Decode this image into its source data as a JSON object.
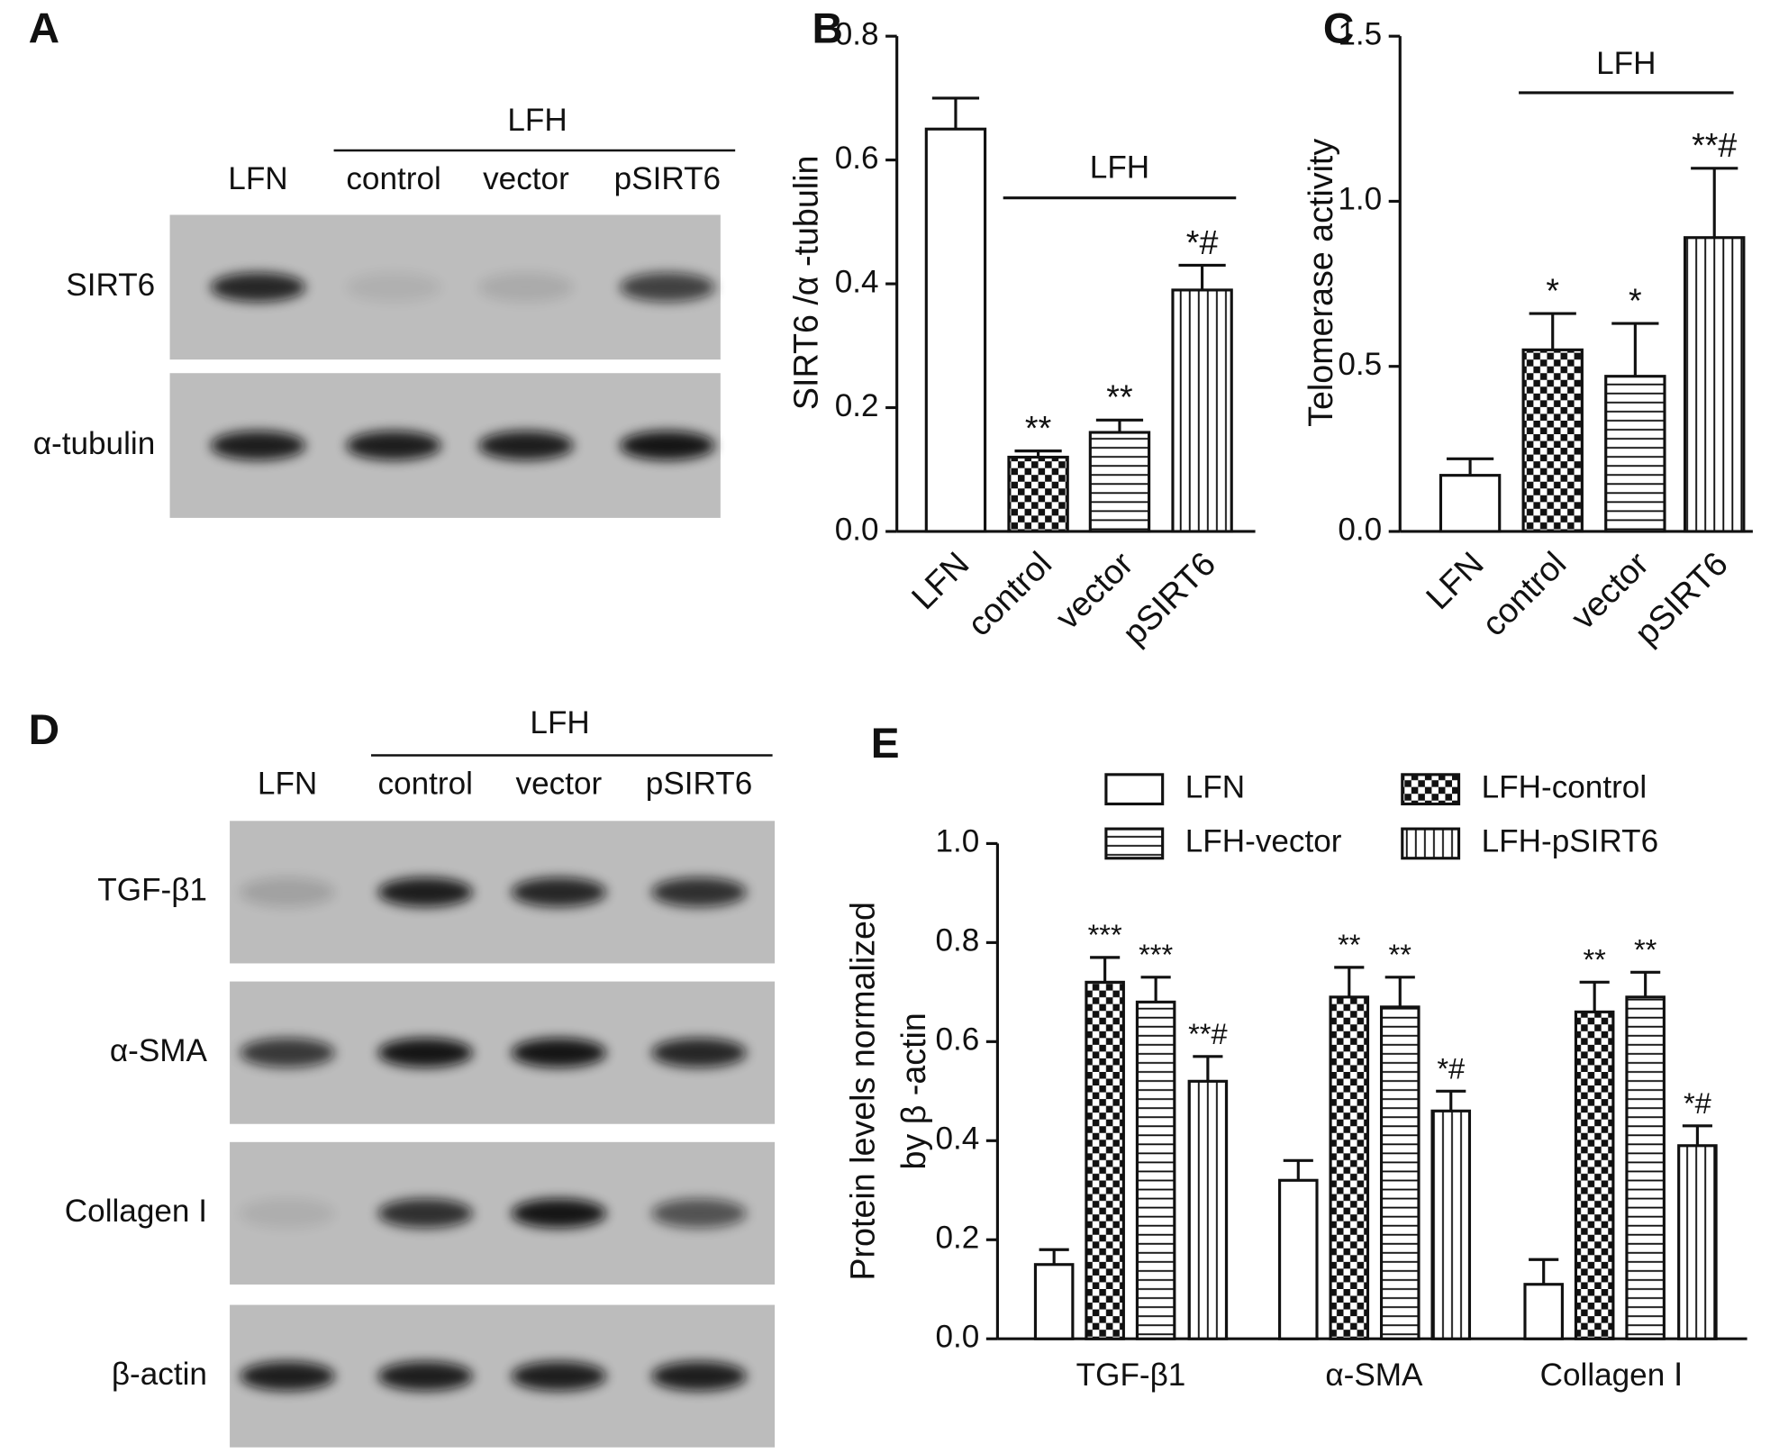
{
  "blots": [
    {
      "panel": "A",
      "group": "LFH",
      "lanes": [
        "LFN",
        "control",
        "vector",
        "pSIRT6"
      ],
      "rows": [
        "SIRT6",
        "α-tubulin"
      ]
    },
    {
      "panel": "D",
      "group": "LFH",
      "lanes": [
        "LFN",
        "control",
        "vector",
        "pSIRT6"
      ],
      "rows": [
        "TGF-β1",
        "α-SMA",
        "Collagen I",
        "β-actin"
      ]
    }
  ],
  "chart_data": [
    {
      "type": "bar",
      "panel": "B",
      "y_label": "SIRT6 /α -tubulin",
      "group": "LFH",
      "categories": [
        "LFN",
        "control",
        "vector",
        "pSIRT6"
      ],
      "values": [
        0.65,
        0.12,
        0.16,
        0.39
      ],
      "errors": [
        0.05,
        0.01,
        0.02,
        0.04
      ],
      "annotations": [
        null,
        "**",
        "**",
        "*#"
      ],
      "patterns": [
        "none",
        "checker",
        "horizontal",
        "vertical"
      ],
      "ylim": [
        0,
        0.8
      ],
      "yticks": [
        {
          "value": 0,
          "label": "0.0"
        },
        0.2,
        0.4,
        0.6,
        0.8
      ]
    },
    {
      "type": "bar",
      "panel": "C",
      "y_label": "Telomerase activity",
      "group": "LFH",
      "categories": [
        "LFN",
        "control",
        "vector",
        "pSIRT6"
      ],
      "values": [
        0.17,
        0.55,
        0.47,
        0.89
      ],
      "errors": [
        0.05,
        0.11,
        0.16,
        0.21
      ],
      "annotations": [
        null,
        "*",
        "*",
        "**#"
      ],
      "patterns": [
        "none",
        "checker",
        "horizontal",
        "vertical"
      ],
      "ylim": [
        0,
        1.5
      ],
      "yticks": [
        {
          "value": 0,
          "label": "0.0"
        },
        0.5,
        {
          "value": 1,
          "label": "1.0"
        },
        1.5
      ]
    },
    {
      "type": "bar",
      "panel": "E",
      "y_label": [
        "Protein levels normalized",
        "by β -actin"
      ],
      "categories": [
        "TGF-β1",
        "α-SMA",
        "Collagen Ⅰ"
      ],
      "series": [
        {
          "name": "LFN",
          "pattern": "none",
          "values": [
            0.15,
            0.32,
            0.11
          ],
          "errors": [
            0.03,
            0.04,
            0.05
          ],
          "annotations": [
            null,
            null,
            null
          ]
        },
        {
          "name": "LFH-control",
          "pattern": "checker",
          "values": [
            0.72,
            0.69,
            0.66
          ],
          "errors": [
            0.05,
            0.06,
            0.06
          ],
          "annotations": [
            "***",
            "**",
            "**"
          ]
        },
        {
          "name": "LFH-vector",
          "pattern": "horizontal",
          "values": [
            0.68,
            0.67,
            0.69
          ],
          "errors": [
            0.05,
            0.06,
            0.05
          ],
          "annotations": [
            "***",
            "**",
            "**"
          ]
        },
        {
          "name": "LFH-pSIRT6",
          "pattern": "vertical",
          "values": [
            0.52,
            0.46,
            0.39
          ],
          "errors": [
            0.05,
            0.04,
            0.04
          ],
          "annotations": [
            "**#",
            "*#",
            "*#"
          ]
        }
      ],
      "ylim": [
        0,
        1
      ],
      "yticks": [
        {
          "value": 0,
          "label": "0.0"
        },
        0.2,
        0.4,
        0.6,
        0.8,
        {
          "value": 1,
          "label": "1.0"
        }
      ]
    }
  ]
}
